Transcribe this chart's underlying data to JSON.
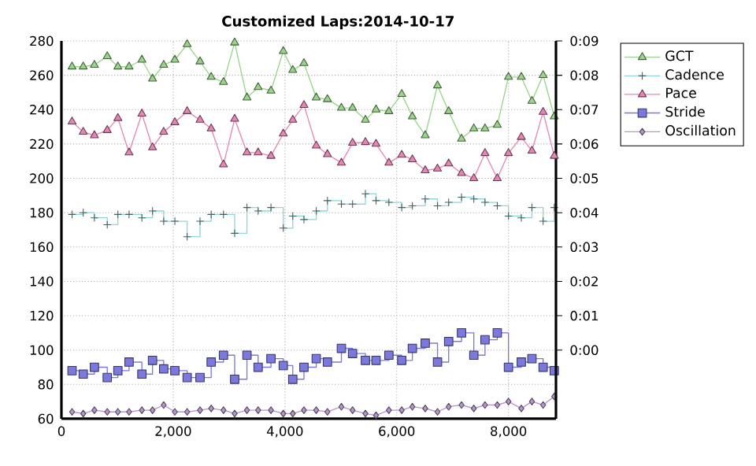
{
  "chart_data": {
    "type": "line",
    "title": "Customized Laps:2014-10-17",
    "x": [
      190,
      390,
      590,
      820,
      1010,
      1210,
      1440,
      1630,
      1830,
      2030,
      2250,
      2480,
      2680,
      2900,
      3100,
      3320,
      3520,
      3750,
      3970,
      4140,
      4340,
      4560,
      4760,
      5010,
      5210,
      5440,
      5630,
      5860,
      6090,
      6280,
      6510,
      6730,
      6930,
      7160,
      7380,
      7580,
      7800,
      8000,
      8230,
      8420,
      8620,
      8820
    ],
    "xlim": [
      0,
      8850
    ],
    "xticks": [
      0,
      {
        "value": 2000,
        "label": "2,000"
      },
      {
        "value": 4000,
        "label": "4,000"
      },
      {
        "value": 6000,
        "label": "6,000"
      },
      {
        "value": 8000,
        "label": "8,000"
      }
    ],
    "ylim": [
      60,
      280
    ],
    "yticks": [
      60,
      80,
      100,
      120,
      140,
      160,
      180,
      200,
      220,
      240,
      260,
      280
    ],
    "y2lim": [
      -2,
      9
    ],
    "y2ticks": [
      {
        "value": 0,
        "label": "0:00"
      },
      {
        "value": 1,
        "label": "0:01"
      },
      {
        "value": 2,
        "label": "0:02"
      },
      {
        "value": 3,
        "label": "0:03"
      },
      {
        "value": 4,
        "label": "0:04"
      },
      {
        "value": 5,
        "label": "0:05"
      },
      {
        "value": 6,
        "label": "0:06"
      },
      {
        "value": 7,
        "label": "0:07"
      },
      {
        "value": 8,
        "label": "0:08"
      },
      {
        "value": 9,
        "label": "0:09"
      }
    ],
    "grid": true,
    "legend": "right",
    "series": [
      {
        "name": "GCT",
        "type": "line",
        "marker": "triangle",
        "color": "#9ad48a",
        "values": [
          265,
          265,
          266,
          271,
          265,
          265,
          269,
          258,
          266,
          269,
          278,
          268,
          259,
          256,
          279,
          247,
          253,
          251,
          274,
          263,
          267,
          247,
          246,
          241,
          241,
          234,
          240,
          239,
          249,
          236,
          225,
          254,
          239,
          223,
          229,
          229,
          231,
          259,
          259,
          245,
          260,
          236
        ]
      },
      {
        "name": "Cadence",
        "type": "step",
        "marker": "cross",
        "color": "#8ed6da",
        "values": [
          179,
          180,
          177,
          173,
          179,
          179,
          177,
          181,
          175,
          175,
          166,
          175,
          179,
          179,
          168,
          183,
          181,
          183,
          171,
          178,
          176,
          181,
          187,
          185,
          185,
          191,
          187,
          186,
          183,
          184,
          188,
          184,
          186,
          189,
          188,
          186,
          184,
          178,
          177,
          183,
          175,
          183
        ]
      },
      {
        "name": "Pace",
        "type": "line",
        "marker": "triangle",
        "axis": "y2",
        "color": "#e586b4",
        "values": [
          6.65,
          6.35,
          6.25,
          6.4,
          6.75,
          5.75,
          6.88,
          5.9,
          6.35,
          6.63,
          6.95,
          6.7,
          6.45,
          5.4,
          6.73,
          5.75,
          5.75,
          5.65,
          6.3,
          6.7,
          7.13,
          5.95,
          5.7,
          5.45,
          6.03,
          6.05,
          6.0,
          5.45,
          5.68,
          5.55,
          5.23,
          5.28,
          5.43,
          5.15,
          5.0,
          5.73,
          5.0,
          5.73,
          6.2,
          5.8,
          6.93,
          5.65
        ]
      },
      {
        "name": "Stride",
        "type": "step",
        "marker": "square",
        "color": "#7b78de",
        "values": [
          88,
          86,
          90,
          84,
          88,
          93,
          86,
          94,
          89,
          88,
          84,
          84,
          93,
          97,
          83,
          97,
          90,
          95,
          91,
          83,
          90,
          95,
          93,
          101,
          98,
          94,
          94,
          97,
          94,
          101,
          104,
          93,
          105,
          110,
          97,
          106,
          110,
          90,
          93,
          95,
          90,
          88
        ]
      },
      {
        "name": "Oscillation",
        "type": "line",
        "marker": "diamond",
        "color": "#b497c8",
        "values": [
          64,
          63,
          65,
          64,
          64,
          64,
          65,
          65,
          68,
          64,
          64,
          65,
          66,
          65,
          63,
          65,
          65,
          65,
          63,
          63,
          65,
          65,
          64,
          67,
          65,
          63,
          62,
          65,
          65,
          67,
          66,
          64,
          67,
          68,
          66,
          68,
          68,
          70,
          66,
          70,
          68,
          73
        ]
      }
    ]
  }
}
